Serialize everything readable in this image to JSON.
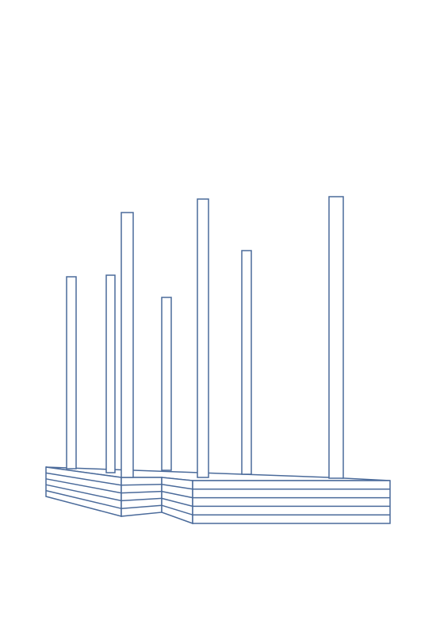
{
  "colors": {
    "line": "#4a6a9a",
    "background": "#ffffff"
  },
  "drawing": {
    "base_layers": 5,
    "post_count": 7
  }
}
